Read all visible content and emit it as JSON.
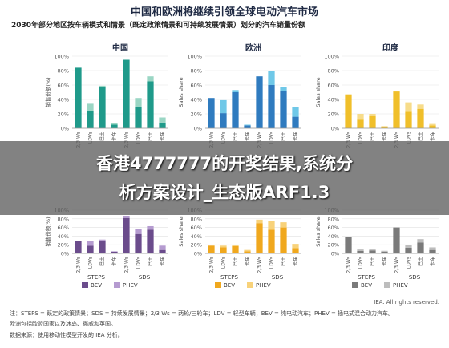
{
  "title": "中国和欧洲将继续引领全球电动汽车市场",
  "subtitle": "2030年部分地区按车辆模式和情景（既定政策情景和可持续发展情景）划分的汽车销量份额",
  "overlay": {
    "line1": "香港4777777的开奖结果,系统分",
    "line2": "析方案设计_生态版ARF1.3"
  },
  "notes": {
    "line1": "注：STEPS = 既定的政策情景；SDS = 持续发展情景；2/3 Ws = 两轮/三轮车；LDV = 轻型车辆；BEV = 纯电动汽车；PHEV = 插电式混合动力汽车。",
    "line2": "欧洲包括欧盟国家以及冰岛、挪威和英国。",
    "line3": "数据来源：使用移动性模型开发的 IEA 分析。"
  },
  "source": "IEA. All rights reserved.",
  "colors": {
    "china": {
      "bev": "#1f9a8a",
      "phev": "#9ad6c4"
    },
    "europe": {
      "bev": "#2f7bbf",
      "phev": "#6fc8e8"
    },
    "india": {
      "bev": "#f0bf2a",
      "phev": "#f7dc8a"
    },
    "purple": {
      "bev": "#6b4c8c",
      "phev": "#b59bd0"
    },
    "orange": {
      "bev": "#f0a81e",
      "phev": "#f8d27a"
    },
    "gray": {
      "bev": "#7a7a7a",
      "phev": "#bdbdbd"
    }
  },
  "chart_data": [
    {
      "type": "bar",
      "stacked": true,
      "title": "中国",
      "ylabel": "销售份额(%)",
      "yticks": [
        "0%",
        "20%",
        "40%",
        "60%",
        "80%",
        "100%"
      ],
      "ylim": [
        0,
        100
      ],
      "scenarios": [
        "STEPS",
        "SDS"
      ],
      "categories": [
        "2/3 Ws",
        "LDVs",
        "巴士",
        "卡车",
        "2/3 Ws",
        "LDVs",
        "巴士",
        "卡车"
      ],
      "colors": "china",
      "series": [
        {
          "name": "BEV",
          "values": [
            84,
            24,
            57,
            5,
            95,
            30,
            65,
            8
          ]
        },
        {
          "name": "PHEV",
          "values": [
            0,
            10,
            2,
            2,
            0,
            12,
            7,
            7
          ]
        }
      ]
    },
    {
      "type": "bar",
      "stacked": true,
      "title": "欧洲",
      "ylabel": "Sales share",
      "yticks": [
        "0%",
        "20%",
        "40%",
        "60%",
        "80%",
        "100%"
      ],
      "ylim": [
        0,
        100
      ],
      "scenarios": [
        "STEPS",
        "SDS"
      ],
      "categories": [
        "2/3 Ws",
        "LDVs",
        "巴士",
        "卡车",
        "2/3 Ws",
        "LDVs",
        "巴士",
        "卡车"
      ],
      "colors": "europe",
      "series": [
        {
          "name": "BEV",
          "values": [
            42,
            21,
            50,
            4,
            72,
            60,
            52,
            16
          ]
        },
        {
          "name": "PHEV",
          "values": [
            0,
            18,
            3,
            1,
            0,
            20,
            5,
            14
          ]
        }
      ]
    },
    {
      "type": "bar",
      "stacked": true,
      "title": "印度",
      "ylabel": "Sales share",
      "yticks": [
        "0%",
        "20%",
        "40%",
        "60%",
        "80%",
        "100%"
      ],
      "ylim": [
        0,
        100
      ],
      "scenarios": [
        "STEPS",
        "SDS"
      ],
      "categories": [
        "2/3 Ws",
        "LDVs",
        "巴士",
        "卡车",
        "2/3 Ws",
        "LDVs",
        "巴士",
        "卡车"
      ],
      "colors": "india",
      "series": [
        {
          "name": "BEV",
          "values": [
            47,
            12,
            17,
            2,
            51,
            23,
            27,
            4
          ]
        },
        {
          "name": "PHEV",
          "values": [
            0,
            8,
            3,
            1,
            0,
            13,
            6,
            2
          ]
        }
      ]
    },
    {
      "type": "bar",
      "stacked": true,
      "ylabel": "销售份额(%)",
      "yticks": [
        "0%",
        "20%",
        "40%",
        "60%",
        "80%",
        "100%"
      ],
      "ylim": [
        0,
        100
      ],
      "scenarios": [
        "STEPS",
        "SDS"
      ],
      "categories": [
        "2/3 Ws",
        "LDVs",
        "巴士",
        "卡车",
        "2/3 Ws",
        "LDVs",
        "巴士",
        "卡车"
      ],
      "colors": "purple",
      "legend": [
        "BEV",
        "PHEV"
      ],
      "series": [
        {
          "name": "BEV",
          "values": [
            28,
            18,
            30,
            4,
            82,
            45,
            55,
            8
          ]
        },
        {
          "name": "PHEV",
          "values": [
            0,
            10,
            2,
            1,
            5,
            12,
            8,
            10
          ]
        }
      ]
    },
    {
      "type": "bar",
      "stacked": true,
      "ylabel": "Sales share",
      "yticks": [
        "0%",
        "20%",
        "40%",
        "60%",
        "80%",
        "100%"
      ],
      "ylim": [
        0,
        100
      ],
      "scenarios": [
        "STEPS",
        "SDS"
      ],
      "categories": [
        "2/3 Ws",
        "LDVs",
        "巴士",
        "卡车",
        "2/3 Ws",
        "LDVs",
        "巴士",
        "卡车"
      ],
      "colors": "orange",
      "legend": [
        "BEV",
        "PHEV"
      ],
      "series": [
        {
          "name": "BEV",
          "values": [
            18,
            14,
            17,
            5,
            70,
            55,
            60,
            12
          ]
        },
        {
          "name": "PHEV",
          "values": [
            0,
            4,
            3,
            3,
            8,
            20,
            12,
            10
          ]
        }
      ]
    },
    {
      "type": "bar",
      "stacked": true,
      "ylabel": "Sales share",
      "yticks": [
        "0%",
        "20%",
        "40%",
        "60%",
        "80%",
        "100%"
      ],
      "ylim": [
        0,
        100
      ],
      "scenarios": [
        "STEPS",
        "SDS"
      ],
      "categories": [
        "2/3 Ws",
        "LDVs",
        "巴士",
        "卡车",
        "2/3 Ws",
        "LDVs",
        "巴士",
        "卡车"
      ],
      "colors": "gray",
      "legend": [
        "BEV",
        "PHEV"
      ],
      "series": [
        {
          "name": "BEV",
          "values": [
            38,
            6,
            7,
            4,
            60,
            13,
            25,
            8
          ]
        },
        {
          "name": "PHEV",
          "values": [
            0,
            3,
            2,
            2,
            0,
            7,
            8,
            6
          ]
        }
      ]
    }
  ]
}
